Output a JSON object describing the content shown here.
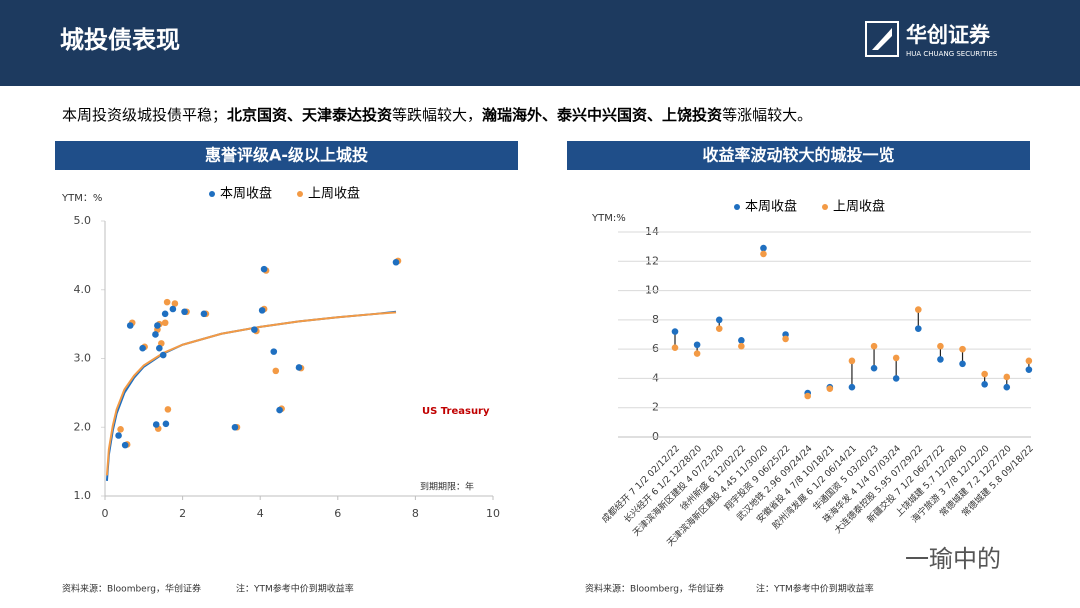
{
  "header": {
    "title": "城投债表现",
    "logo": "华创证券",
    "logo_sub": "HUA CHUANG SECURITIES"
  },
  "summary": [
    {
      "text": "本周投资级城投债平稳；",
      "bold": false
    },
    {
      "text": "北京国资、天津泰达投资",
      "bold": true
    },
    {
      "text": "等跌幅较大，",
      "bold": false
    },
    {
      "text": "瀚瑞海外、泰兴中兴国资、上饶投资",
      "bold": true
    },
    {
      "text": "等涨幅较大。",
      "bold": false
    }
  ],
  "watermark": "一瑜中的",
  "chart_data": [
    {
      "type": "scatter",
      "title": "惠誉评级A-级以上城投",
      "y_label": "YTM：%",
      "x_label": "到期期限：年",
      "source": "资料来源：Bloomberg，华创证券",
      "note": "注：YTM参考中价到期收益率",
      "xlim": [
        0,
        10
      ],
      "xticks": [
        0,
        2,
        4,
        6,
        8,
        10
      ],
      "ylim": [
        1,
        5
      ],
      "yticks": [
        {
          "value": 1,
          "label": "1.0"
        },
        {
          "value": 2,
          "label": "2.0"
        },
        {
          "value": 3,
          "label": "3.0"
        },
        {
          "value": 4,
          "label": "4.0"
        },
        {
          "value": 5,
          "label": "5.0"
        }
      ],
      "grid": false,
      "x": [
        0.35,
        0.52,
        0.65,
        0.97,
        1.3,
        1.32,
        1.35,
        1.4,
        1.5,
        1.55,
        1.57,
        1.75,
        2.05,
        2.55,
        3.35,
        3.85,
        4.05,
        4.1,
        4.35,
        4.5,
        5.0,
        7.5
      ],
      "series": [
        {
          "name": "本周收盘",
          "color": "#1f6fc0",
          "values": [
            1.88,
            1.74,
            3.48,
            3.15,
            3.35,
            2.04,
            3.48,
            3.15,
            3.05,
            3.65,
            2.05,
            3.72,
            3.68,
            3.65,
            2.0,
            3.42,
            3.7,
            4.3,
            3.1,
            2.25,
            2.87,
            4.4
          ]
        },
        {
          "name": "上周收盘",
          "color": "#f39a45",
          "values": [
            1.97,
            1.75,
            3.52,
            3.17,
            3.42,
            1.98,
            3.5,
            3.22,
            3.52,
            3.82,
            2.26,
            3.8,
            3.68,
            3.65,
            2.0,
            3.4,
            3.72,
            4.28,
            2.82,
            2.27,
            2.86,
            4.42
          ]
        }
      ],
      "curve": {
        "label": "US Treasury",
        "x": [
          0.05,
          0.1,
          0.2,
          0.3,
          0.5,
          0.75,
          1,
          1.5,
          2,
          3,
          4,
          5,
          6,
          7,
          7.5
        ],
        "series": [
          {
            "color": "#1f6fc0",
            "values": [
              1.22,
              1.6,
              1.95,
              2.2,
              2.5,
              2.72,
              2.88,
              3.07,
              3.2,
              3.36,
              3.46,
              3.54,
              3.6,
              3.65,
              3.68
            ]
          },
          {
            "color": "#f39a45",
            "values": [
              1.3,
              1.68,
              2.02,
              2.26,
              2.55,
              2.75,
              2.9,
              3.08,
              3.2,
              3.36,
              3.46,
              3.54,
              3.6,
              3.65,
              3.67
            ]
          }
        ]
      }
    },
    {
      "type": "dumbbell",
      "title": "收益率波动较大的城投一览",
      "y_label": "YTM:%",
      "source": "资料来源：Bloomberg，华创证券",
      "note": "注：YTM参考中价到期收益率",
      "ylim": [
        0,
        14
      ],
      "yticks": [
        0,
        2,
        4,
        6,
        8,
        10,
        12,
        14
      ],
      "grid": true,
      "categories": [
        "成都经开 7 1/2 02/12/22",
        "长兴经开 6 1/2 12/28/20",
        "天津滨海新区建投 4 07/23/20",
        "徐州新盛 6 12/02/22",
        "天津滨海新区建投 4.45 11/30/20",
        "翔宇投资 9 06/25/22",
        "武汉地铁 2.96 09/24/24",
        "安徽省投 4 7/8 10/18/21",
        "胶州湾发展 6 1/2 06/14/21",
        "华通国资 5 03/20/23",
        "珠海华发 4 1/4 07/03/24",
        "大连德泰控股 5.95 07/29/22",
        "新疆交投 7 1/2 06/27/22",
        "上饶城建 5.7 12/28/20",
        "海宁旅游 3 7/8 12/12/20",
        "常德城建 7.2 12/27/20",
        "常德城建 5.8 09/18/22"
      ],
      "series": [
        {
          "name": "本周收盘",
          "color": "#1f6fc0",
          "values": [
            7.2,
            6.3,
            8.0,
            6.6,
            12.9,
            7.0,
            3.0,
            3.4,
            3.4,
            4.7,
            4.0,
            7.4,
            5.3,
            5.0,
            3.6,
            3.4,
            4.6
          ]
        },
        {
          "name": "上周收盘",
          "color": "#f39a45",
          "values": [
            6.1,
            5.7,
            7.4,
            6.2,
            12.5,
            6.7,
            2.8,
            3.3,
            5.2,
            6.2,
            5.4,
            8.7,
            6.2,
            6.0,
            4.3,
            4.1,
            5.2
          ]
        }
      ]
    }
  ]
}
